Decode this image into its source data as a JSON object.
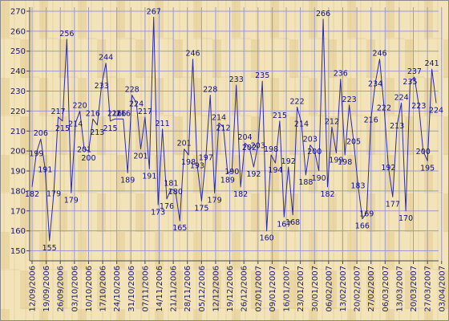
{
  "chart_data": {
    "type": "line",
    "title": "",
    "xlabel": "",
    "ylabel": "",
    "ylim": [
      145,
      272
    ],
    "y_ticks": [
      150,
      160,
      170,
      180,
      190,
      200,
      210,
      220,
      230,
      240,
      250,
      260,
      270
    ],
    "grid": true,
    "legend": "none",
    "colors": {
      "line": "#2a2ab0",
      "labels": "#10108a",
      "grid": "#9a9ad0",
      "background": "#f2e3b8",
      "background_grain": "#e3c98f",
      "axis": "#4a4a4a"
    },
    "x_tick_labels": [
      "12/09/2006",
      "19/09/2006",
      "26/09/2006",
      "03/10/2006",
      "10/10/2006",
      "17/10/2006",
      "24/10/2006",
      "31/10/2006",
      "07/11/2006",
      "14/11/2006",
      "21/11/2006",
      "28/11/2006",
      "05/12/2006",
      "12/12/2006",
      "19/12/2006",
      "26/12/2006",
      "02/01/2007",
      "09/01/2007",
      "16/01/2007",
      "23/01/2007",
      "30/01/2007",
      "06/02/2007",
      "13/02/2007",
      "20/02/2007",
      "27/02/2007",
      "06/03/2007",
      "13/03/2007",
      "20/03/2007",
      "27/03/2007",
      "03/04/2007"
    ],
    "series": [
      {
        "values": [
          182,
          199,
          206,
          191,
          155,
          179,
          217,
          215,
          256,
          179,
          214,
          220,
          201,
          200,
          216,
          213,
          233,
          244,
          215,
          216,
          216,
          216,
          189,
          228,
          224,
          201,
          217,
          191,
          267,
          173,
          211,
          176,
          181,
          180,
          165,
          201,
          198,
          246,
          193,
          175,
          197,
          228,
          179,
          214,
          212,
          189,
          190,
          233,
          182,
          204,
          202,
          192,
          203,
          235,
          160,
          198,
          194,
          215,
          167,
          192,
          168,
          222,
          214,
          188,
          203,
          200,
          190,
          266,
          182,
          212,
          199,
          236,
          198,
          223,
          205,
          183,
          166,
          169,
          216,
          234,
          246,
          222,
          192,
          177,
          213,
          224,
          170,
          235,
          237,
          223,
          200,
          195,
          241,
          224
        ]
      }
    ]
  }
}
